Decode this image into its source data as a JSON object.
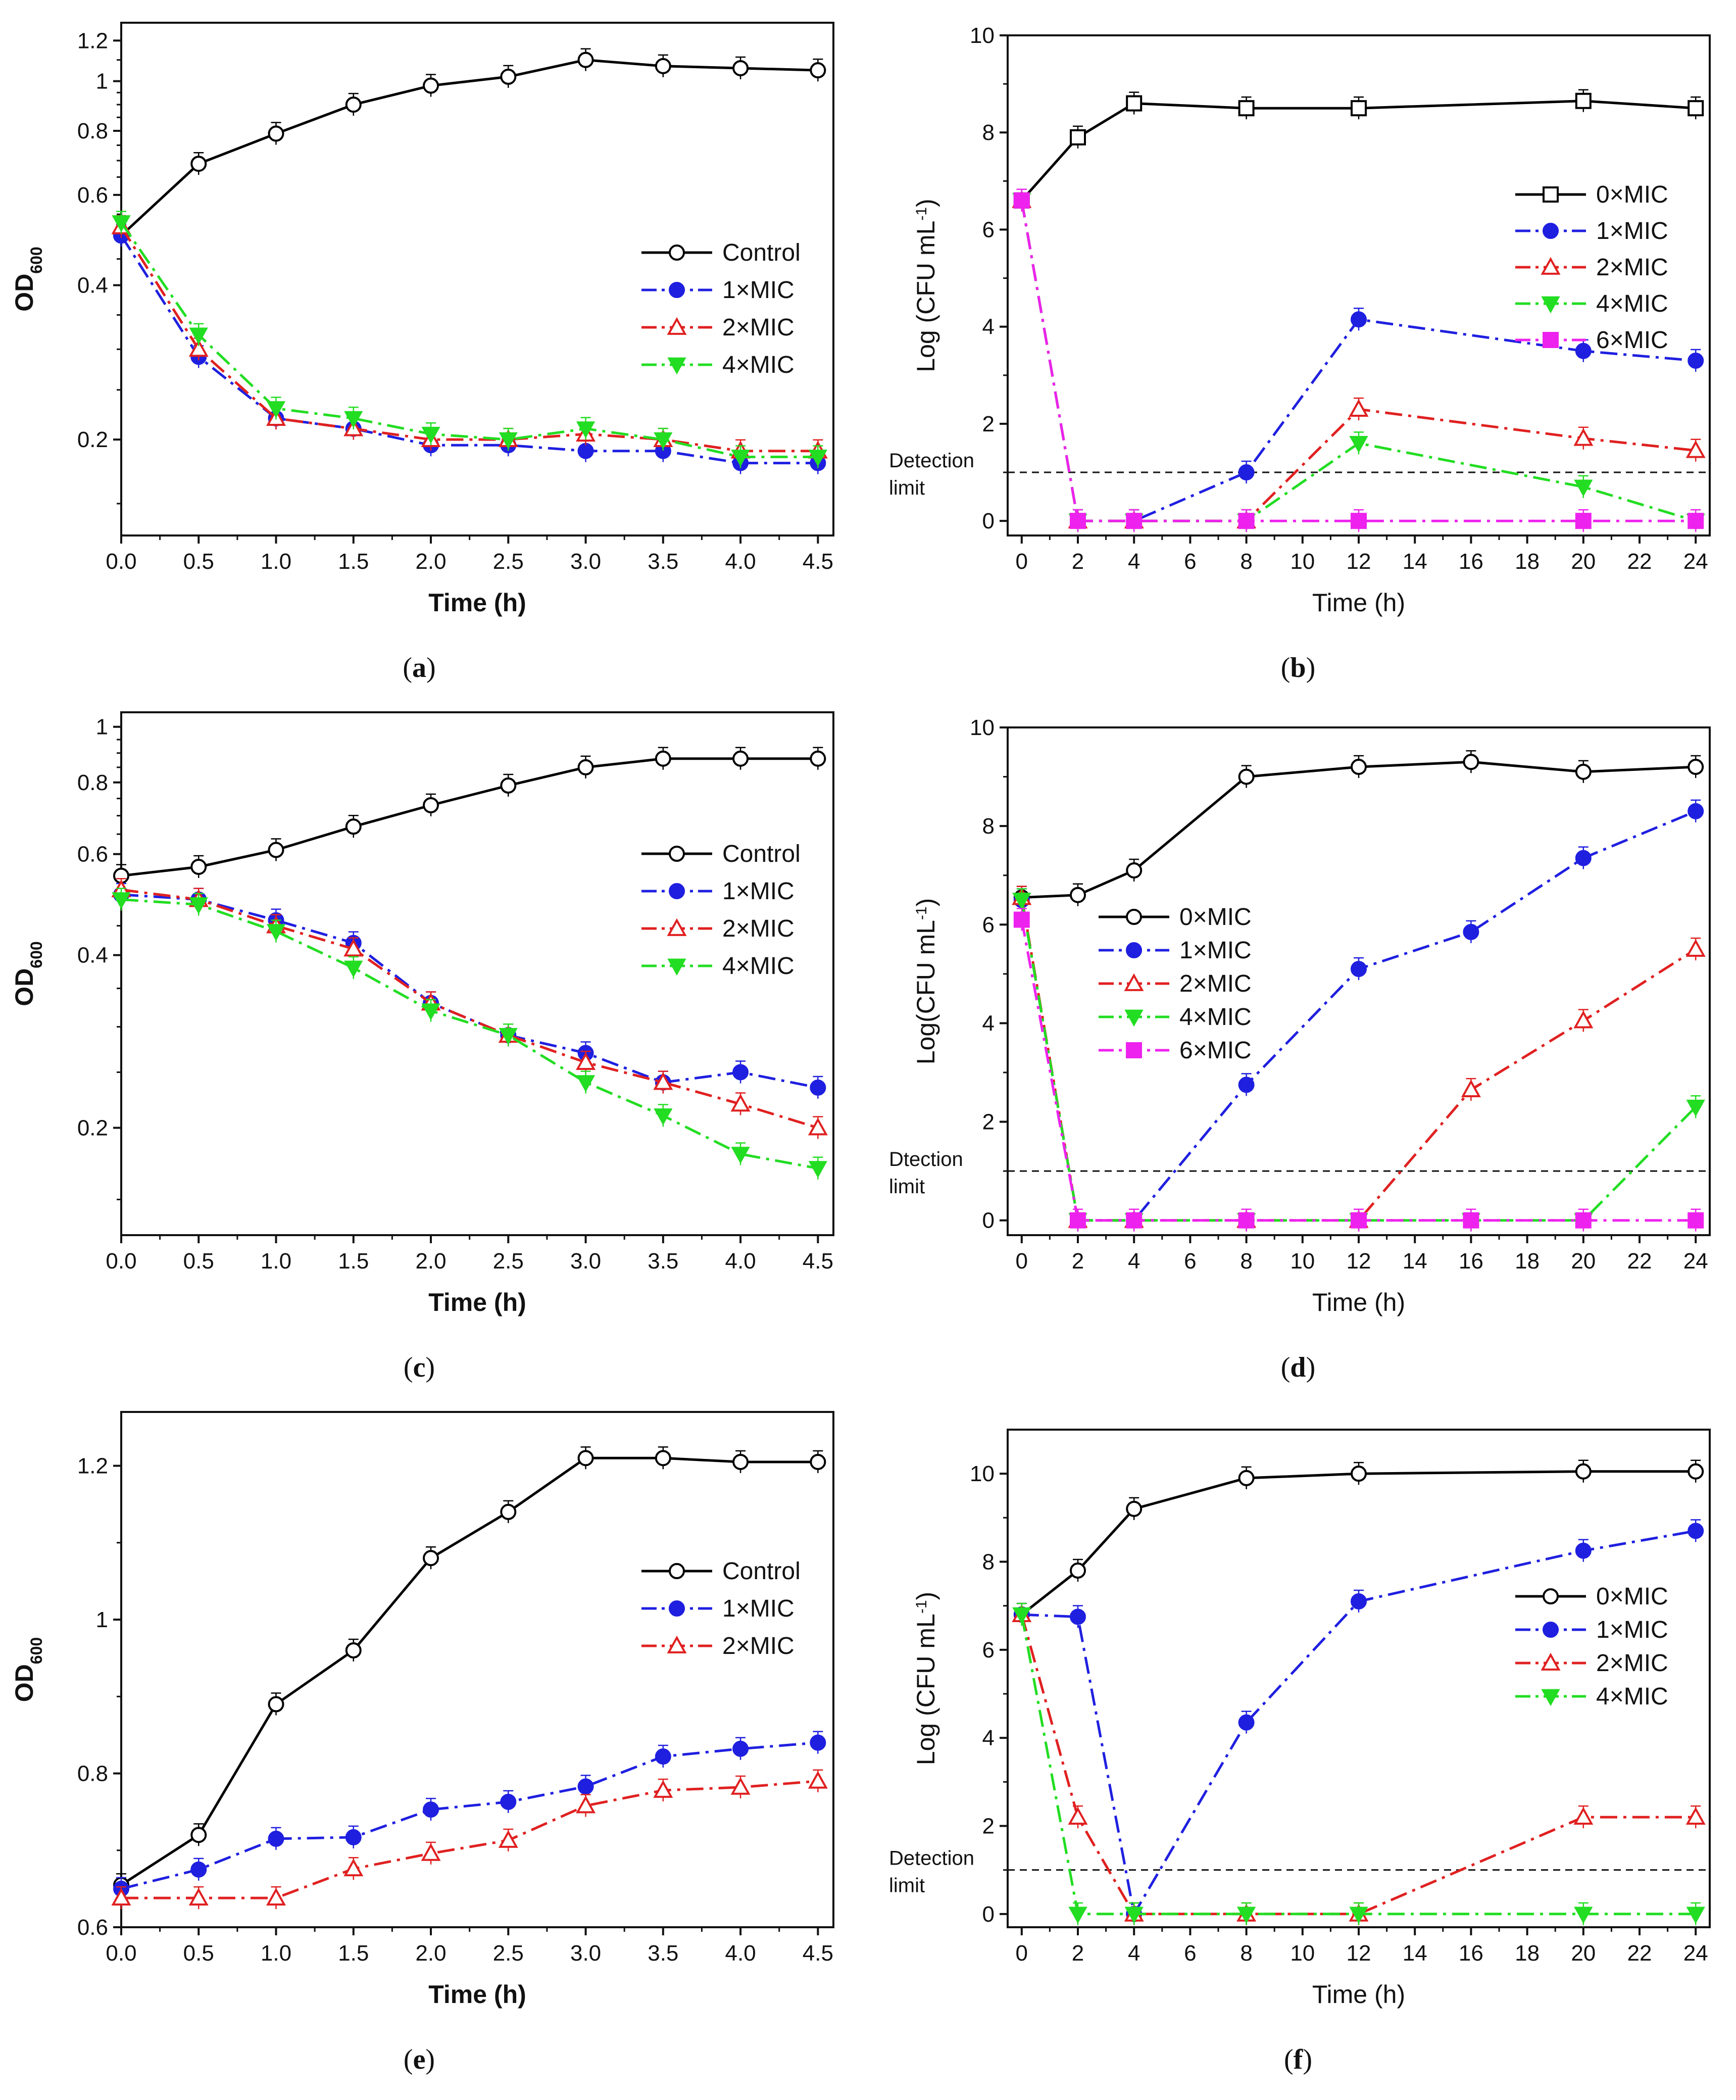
{
  "chart_data": [
    {
      "id": "a",
      "type": "line",
      "panel_label": "(a)",
      "label_letter": "a",
      "xlabel": "Time (h)",
      "ylabel": "OD",
      "ylabel_sub": "600",
      "xlim": [
        0,
        4.6
      ],
      "ylim": [
        0.13,
        1.3
      ],
      "yscale": "log",
      "xticks": [
        "0.0",
        "0.5",
        "1.0",
        "1.5",
        "2.0",
        "2.5",
        "3.0",
        "3.5",
        "4.0",
        "4.5"
      ],
      "yticks": [
        "0.2",
        "0.4",
        "0.6",
        "0.8",
        "1",
        "1.2"
      ],
      "x": [
        0,
        0.5,
        1.0,
        1.5,
        2.0,
        2.5,
        3.0,
        3.5,
        4.0,
        4.5
      ],
      "series": [
        {
          "name": "Control",
          "color": "#000000",
          "marker": "circle-open",
          "dash": "solid",
          "values": [
            0.5,
            0.69,
            0.79,
            0.9,
            0.98,
            1.02,
            1.1,
            1.07,
            1.06,
            1.05
          ]
        },
        {
          "name": "1×MIC",
          "color": "#1f1fe0",
          "marker": "circle-filled",
          "dash": "dashdot",
          "values": [
            0.5,
            0.29,
            0.22,
            0.21,
            0.195,
            0.195,
            0.19,
            0.19,
            0.18,
            0.18
          ]
        },
        {
          "name": "2×MIC",
          "color": "#e02020",
          "marker": "triangle-open",
          "dash": "dashdot",
          "values": [
            0.52,
            0.3,
            0.22,
            0.21,
            0.2,
            0.2,
            0.205,
            0.2,
            0.19,
            0.19
          ]
        },
        {
          "name": "4×MIC",
          "color": "#22dd22",
          "marker": "triangle-down-filled",
          "dash": "dashdot",
          "values": [
            0.53,
            0.32,
            0.23,
            0.22,
            0.205,
            0.2,
            0.21,
            0.2,
            0.185,
            0.185
          ]
        }
      ]
    },
    {
      "id": "b",
      "type": "line",
      "panel_label": "(b)",
      "label_letter": "b",
      "xlabel": "Time (h)",
      "ylabel": "Log (CFU mL",
      "ylabel_sup": "-1",
      "ylabel_end": ")",
      "xlim": [
        -0.5,
        24.5
      ],
      "ylim": [
        -0.3,
        10
      ],
      "yscale": "linear",
      "xticks": [
        "0",
        "2",
        "4",
        "6",
        "8",
        "10",
        "12",
        "14",
        "16",
        "18",
        "20",
        "22",
        "24"
      ],
      "yticks": [
        "0",
        "2",
        "4",
        "6",
        "8",
        "10"
      ],
      "detection_limit": 1.0,
      "detection_text": [
        "Detection",
        "limit"
      ],
      "x": [
        0,
        2,
        4,
        8,
        12,
        20,
        24
      ],
      "series": [
        {
          "name": "0×MIC",
          "color": "#000000",
          "marker": "square-open",
          "dash": "solid",
          "values": [
            6.6,
            7.9,
            8.6,
            8.5,
            8.5,
            8.65,
            8.5
          ]
        },
        {
          "name": "1×MIC",
          "color": "#1f1fe0",
          "marker": "circle-filled",
          "dash": "dashdot",
          "values": [
            6.6,
            0,
            0,
            1.0,
            4.15,
            3.5,
            3.3
          ]
        },
        {
          "name": "2×MIC",
          "color": "#e02020",
          "marker": "triangle-open",
          "dash": "dashdot",
          "values": [
            6.6,
            0,
            0,
            0,
            2.3,
            1.7,
            1.45
          ]
        },
        {
          "name": "4×MIC",
          "color": "#22dd22",
          "marker": "triangle-down-filled",
          "dash": "dashdot",
          "values": [
            6.6,
            0,
            0,
            0,
            1.6,
            0.7,
            0
          ]
        },
        {
          "name": "6×MIC",
          "color": "#ee22ee",
          "marker": "square-filled",
          "dash": "dashdot",
          "values": [
            6.6,
            0,
            0,
            0,
            0,
            0,
            0
          ]
        }
      ]
    },
    {
      "id": "c",
      "type": "line",
      "panel_label": "(c)",
      "label_letter": "c",
      "xlabel": "Time (h)",
      "ylabel": "OD",
      "ylabel_sub": "600",
      "xlim": [
        0,
        4.6
      ],
      "ylim": [
        0.13,
        1.06
      ],
      "yscale": "log",
      "xticks": [
        "0.0",
        "0.5",
        "1.0",
        "1.5",
        "2.0",
        "2.5",
        "3.0",
        "3.5",
        "4.0",
        "4.5"
      ],
      "yticks": [
        "0.2",
        "0.4",
        "0.6",
        "0.8",
        "1"
      ],
      "x": [
        0,
        0.5,
        1.0,
        1.5,
        2.0,
        2.5,
        3.0,
        3.5,
        4.0,
        4.5
      ],
      "series": [
        {
          "name": "Control",
          "color": "#000000",
          "marker": "circle-open",
          "dash": "solid",
          "values": [
            0.55,
            0.57,
            0.61,
            0.67,
            0.73,
            0.79,
            0.85,
            0.88,
            0.88,
            0.88
          ]
        },
        {
          "name": "1×MIC",
          "color": "#1f1fe0",
          "marker": "circle-filled",
          "dash": "dashdot",
          "values": [
            0.51,
            0.5,
            0.46,
            0.42,
            0.33,
            0.29,
            0.27,
            0.24,
            0.25,
            0.235
          ]
        },
        {
          "name": "2×MIC",
          "color": "#e02020",
          "marker": "triangle-open",
          "dash": "dashdot",
          "values": [
            0.52,
            0.5,
            0.45,
            0.41,
            0.33,
            0.29,
            0.26,
            0.24,
            0.22,
            0.2
          ]
        },
        {
          "name": "4×MIC",
          "color": "#22dd22",
          "marker": "triangle-down-filled",
          "dash": "dashdot",
          "values": [
            0.5,
            0.49,
            0.44,
            0.38,
            0.32,
            0.29,
            0.24,
            0.21,
            0.18,
            0.17
          ]
        }
      ]
    },
    {
      "id": "d",
      "type": "line",
      "panel_label": "(d)",
      "label_letter": "d",
      "xlabel": "Time (h)",
      "ylabel": "Log(CFU mL",
      "ylabel_sup": "-1",
      "ylabel_end": ")",
      "xlim": [
        -0.5,
        24.5
      ],
      "ylim": [
        -0.3,
        10
      ],
      "yscale": "linear",
      "xticks": [
        "0",
        "2",
        "4",
        "6",
        "8",
        "10",
        "12",
        "14",
        "16",
        "18",
        "20",
        "22",
        "24"
      ],
      "yticks": [
        "0",
        "2",
        "4",
        "6",
        "8",
        "10"
      ],
      "detection_limit": 1.0,
      "detection_text": [
        "Dtection",
        "limit"
      ],
      "x": [
        0,
        2,
        4,
        8,
        12,
        16,
        20,
        24
      ],
      "series": [
        {
          "name": "0×MIC",
          "color": "#000000",
          "marker": "circle-open",
          "dash": "solid",
          "values": [
            6.55,
            6.6,
            7.1,
            9.0,
            9.2,
            9.3,
            9.1,
            9.2
          ]
        },
        {
          "name": "1×MIC",
          "color": "#1f1fe0",
          "marker": "circle-filled",
          "dash": "dashdot",
          "values": [
            6.5,
            0,
            0,
            2.75,
            5.1,
            5.85,
            7.35,
            8.3
          ]
        },
        {
          "name": "2×MIC",
          "color": "#e02020",
          "marker": "triangle-open",
          "dash": "dashdot",
          "values": [
            6.55,
            0,
            0,
            0,
            0,
            2.65,
            4.05,
            5.5
          ]
        },
        {
          "name": "4×MIC",
          "color": "#22dd22",
          "marker": "triangle-down-filled",
          "dash": "dashdot",
          "values": [
            6.5,
            0,
            0,
            0,
            0,
            0,
            0,
            2.3
          ]
        },
        {
          "name": "6×MIC",
          "color": "#ee22ee",
          "marker": "square-filled",
          "dash": "dashdot",
          "values": [
            6.1,
            0,
            0,
            0,
            0,
            0,
            0,
            0
          ]
        }
      ]
    },
    {
      "id": "e",
      "type": "line",
      "panel_label": "(e)",
      "label_letter": "e",
      "xlabel": "Time (h)",
      "ylabel": "OD",
      "ylabel_sub": "600",
      "xlim": [
        0,
        4.6
      ],
      "ylim": [
        0.6,
        1.27
      ],
      "yscale": "linear",
      "xticks": [
        "0.0",
        "0.5",
        "1.0",
        "1.5",
        "2.0",
        "2.5",
        "3.0",
        "3.5",
        "4.0",
        "4.5"
      ],
      "yticks": [
        "0.6",
        "0.8",
        "1",
        "1.2"
      ],
      "x": [
        0,
        0.5,
        1.0,
        1.5,
        2.0,
        2.5,
        3.0,
        3.5,
        4.0,
        4.5
      ],
      "series": [
        {
          "name": "Control",
          "color": "#000000",
          "marker": "circle-open",
          "dash": "solid",
          "values": [
            0.655,
            0.72,
            0.89,
            0.96,
            1.08,
            1.14,
            1.21,
            1.21,
            1.205,
            1.205
          ]
        },
        {
          "name": "1×MIC",
          "color": "#1f1fe0",
          "marker": "circle-filled",
          "dash": "dashdot",
          "values": [
            0.65,
            0.675,
            0.715,
            0.717,
            0.753,
            0.763,
            0.783,
            0.822,
            0.832,
            0.84
          ]
        },
        {
          "name": "2×MIC",
          "color": "#e02020",
          "marker": "triangle-open",
          "dash": "dashdot",
          "values": [
            0.638,
            0.638,
            0.638,
            0.676,
            0.696,
            0.713,
            0.758,
            0.778,
            0.782,
            0.79
          ]
        }
      ]
    },
    {
      "id": "f",
      "type": "line",
      "panel_label": "(f)",
      "label_letter": "f",
      "xlabel": "Time (h)",
      "ylabel": "Log (CFU mL",
      "ylabel_sup": "-1",
      "ylabel_end": ")",
      "xlim": [
        -0.5,
        24.5
      ],
      "ylim": [
        -0.3,
        11
      ],
      "yscale": "linear",
      "xticks": [
        "0",
        "2",
        "4",
        "6",
        "8",
        "10",
        "12",
        "14",
        "16",
        "18",
        "20",
        "22",
        "24"
      ],
      "yticks": [
        "0",
        "2",
        "4",
        "6",
        "8",
        "10"
      ],
      "detection_limit": 1.0,
      "detection_text": [
        "Detection",
        "limit"
      ],
      "x": [
        0,
        2,
        4,
        8,
        12,
        20,
        24
      ],
      "series": [
        {
          "name": "0×MIC",
          "color": "#000000",
          "marker": "circle-open",
          "dash": "solid",
          "values": [
            6.8,
            7.8,
            9.2,
            9.9,
            10.0,
            10.05,
            10.05
          ]
        },
        {
          "name": "1×MIC",
          "color": "#1f1fe0",
          "marker": "circle-filled",
          "dash": "dashdot",
          "values": [
            6.8,
            6.75,
            0,
            4.35,
            7.1,
            8.25,
            8.7
          ]
        },
        {
          "name": "2×MIC",
          "color": "#e02020",
          "marker": "triangle-open",
          "dash": "dashdot",
          "values": [
            6.8,
            2.2,
            0,
            0,
            0,
            2.2,
            2.2
          ]
        },
        {
          "name": "4×MIC",
          "color": "#22dd22",
          "marker": "triangle-down-filled",
          "dash": "dashdot",
          "values": [
            6.8,
            0,
            0,
            0,
            0,
            0,
            0
          ]
        }
      ]
    }
  ]
}
